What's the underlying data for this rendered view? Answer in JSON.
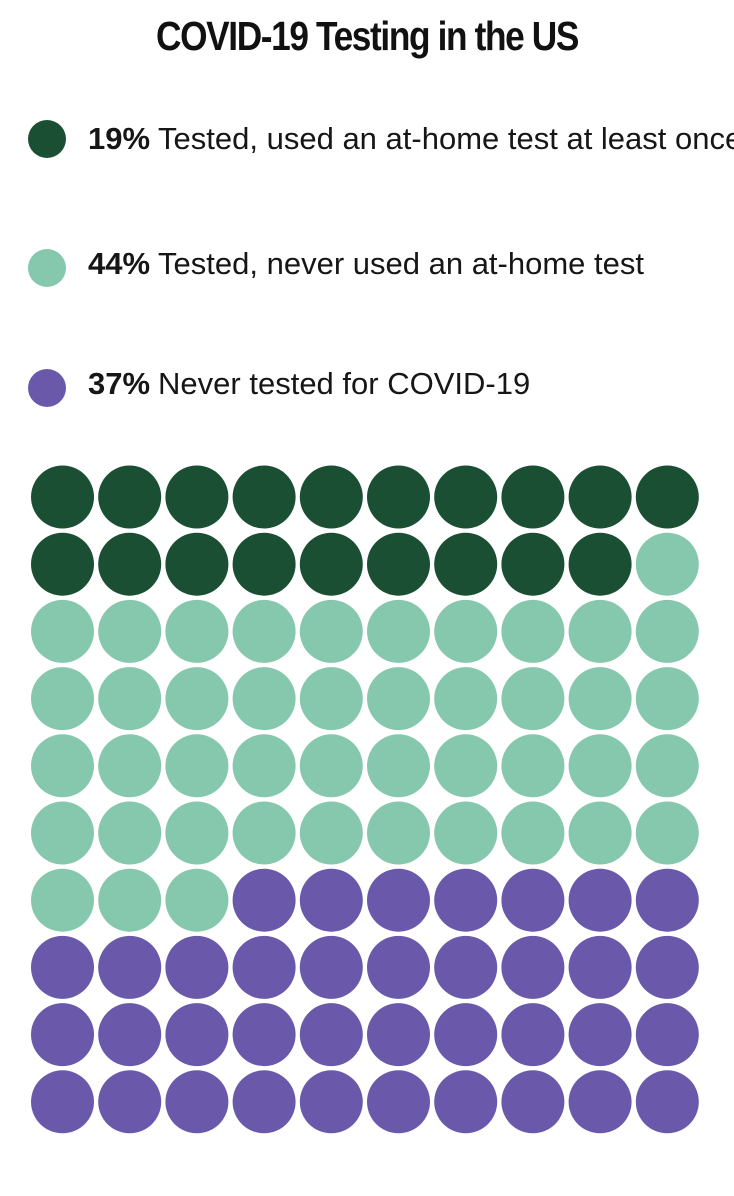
{
  "title": "COVID-19 Testing in the US",
  "legend": [
    {
      "pct": "19%",
      "label": "Tested, used an at-home test at least once",
      "color": "#1b4f34"
    },
    {
      "pct": "44%",
      "label": "Tested, never used an at-home test",
      "color": "#86c8ad"
    },
    {
      "pct": "37%",
      "label": "Never tested for COVID-19",
      "color": "#6a59ab"
    }
  ],
  "chart_data": {
    "type": "waffle",
    "title": "COVID-19 Testing in the US",
    "grid": {
      "rows": 10,
      "cols": 10
    },
    "categories": [
      "Tested, used an at-home test at least once",
      "Tested, never used an at-home test",
      "Never tested for COVID-19"
    ],
    "values": [
      19,
      44,
      37
    ],
    "unit": "%",
    "colors": [
      "#1b4f34",
      "#86c8ad",
      "#6a59ab"
    ],
    "fill_order": "row-major, left to right, top to bottom"
  }
}
